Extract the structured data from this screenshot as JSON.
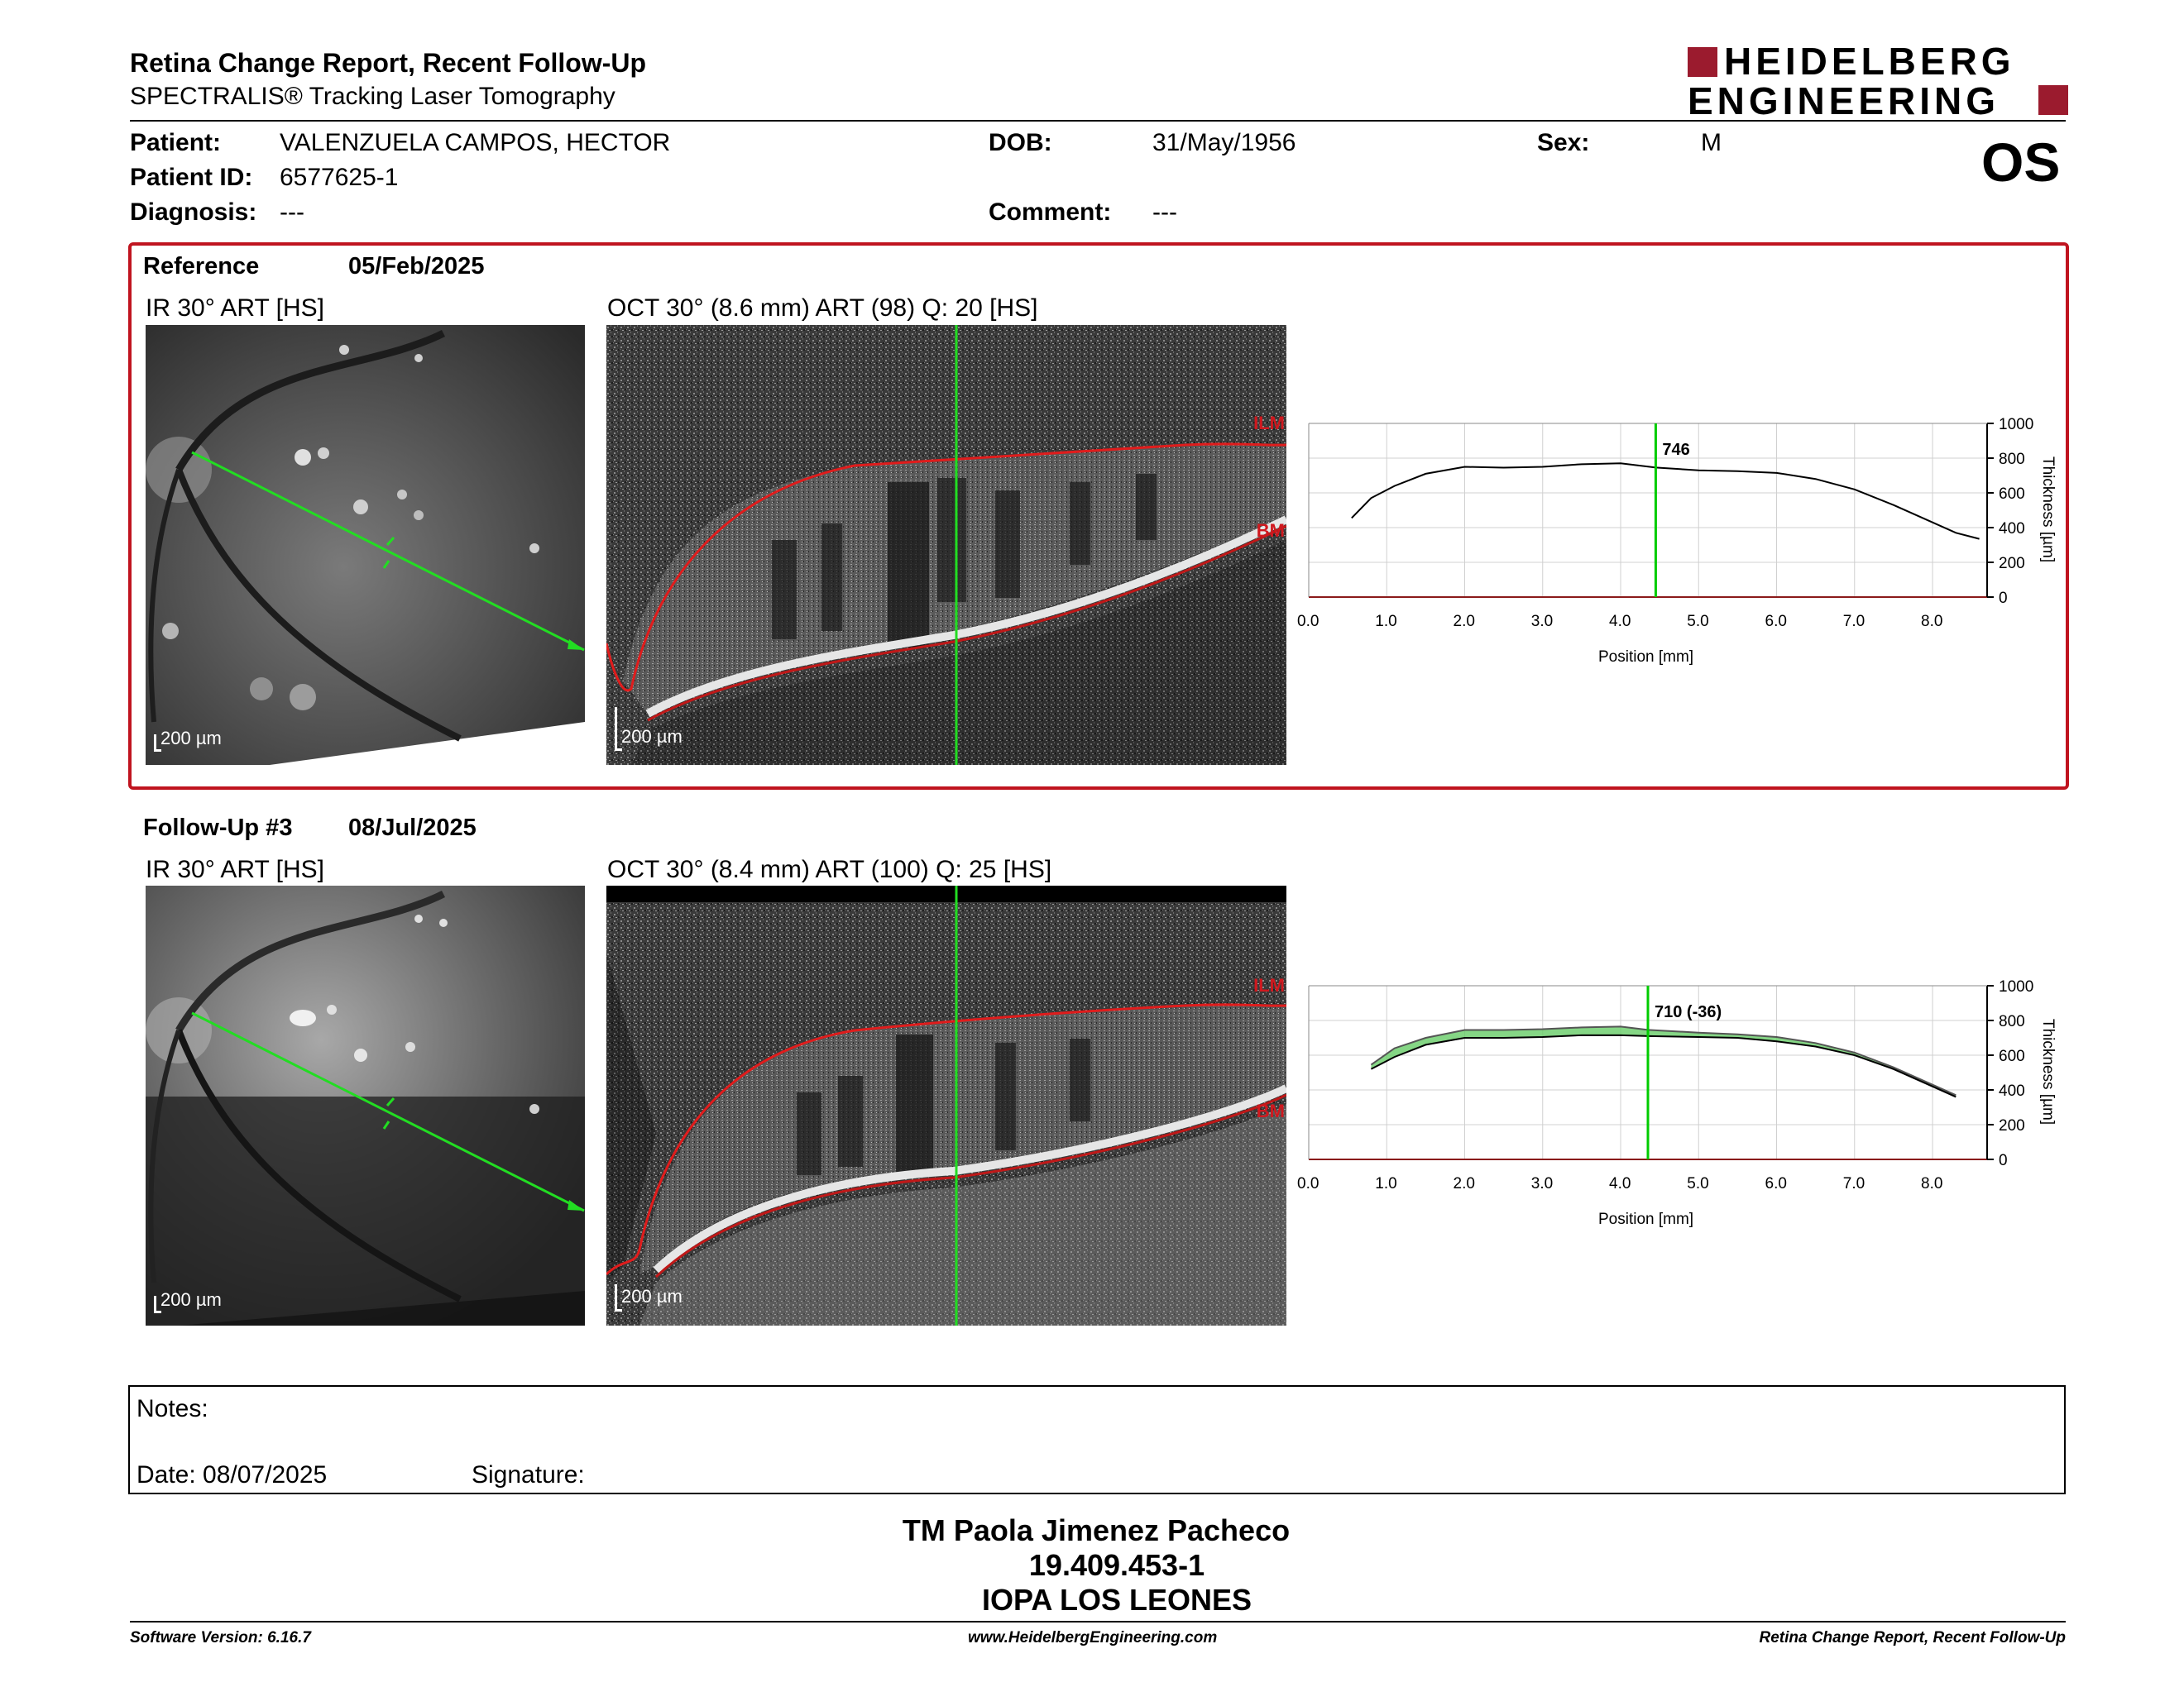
{
  "header": {
    "title": "Retina Change Report, Recent Follow-Up",
    "subtitle": "SPECTRALIS® Tracking Laser Tomography",
    "logo_line1": "HEIDELBERG",
    "logo_line2": "ENGINEERING",
    "eye": "OS"
  },
  "patient": {
    "name_label": "Patient:",
    "name": "VALENZUELA CAMPOS, HECTOR",
    "id_label": "Patient ID:",
    "id": "6577625-1",
    "diagnosis_label": "Diagnosis:",
    "diagnosis": "---",
    "dob_label": "DOB:",
    "dob": "31/May/1956",
    "comment_label": "Comment:",
    "comment": "---",
    "sex_label": "Sex:",
    "sex": "M"
  },
  "reference": {
    "label": "Reference",
    "date": "05/Feb/2025",
    "ir_caption": "IR 30° ART [HS]",
    "oct_caption": "OCT 30° (8.6 mm) ART (98) Q: 20 [HS]",
    "ir_scale": "200 µm",
    "oct_scale": "200 µm",
    "ilm": "ILM",
    "bm": "BM"
  },
  "followup": {
    "label": "Follow-Up #3",
    "date": "08/Jul/2025",
    "ir_caption": "IR 30° ART [HS]",
    "oct_caption": "OCT 30° (8.4 mm) ART (100) Q: 25 [HS]",
    "ir_scale": "200 µm",
    "oct_scale": "200 µm",
    "ilm": "ILM",
    "bm": "BM"
  },
  "chart_data": [
    {
      "type": "line",
      "xlabel": "Position [mm]",
      "ylabel": "Thickness [µm]",
      "xlim": [
        0,
        8.6
      ],
      "ylim": [
        0,
        1000
      ],
      "xticks": [
        "0.0",
        "1.0",
        "2.0",
        "3.0",
        "4.0",
        "5.0",
        "6.0",
        "7.0",
        "8.0"
      ],
      "yticks": [
        "0",
        "200",
        "400",
        "600",
        "800",
        "1000"
      ],
      "marker_x": 4.45,
      "marker_label": "746",
      "series": [
        {
          "x": [
            0.55,
            0.8,
            1.1,
            1.5,
            2.0,
            2.5,
            3.0,
            3.5,
            4.0,
            4.45,
            5.0,
            5.5,
            6.0,
            6.5,
            7.0,
            7.5,
            8.0,
            8.3,
            8.6
          ],
          "y": [
            455,
            570,
            640,
            710,
            750,
            745,
            750,
            765,
            770,
            746,
            730,
            725,
            715,
            680,
            620,
            530,
            430,
            370,
            335
          ]
        }
      ],
      "colors": {
        "line": "#000000",
        "marker": "#00cc00"
      }
    },
    {
      "type": "line",
      "xlabel": "Position [mm]",
      "ylabel": "Thickness [µm]",
      "xlim": [
        0,
        8.4
      ],
      "ylim": [
        0,
        1000
      ],
      "xticks": [
        "0.0",
        "1.0",
        "2.0",
        "3.0",
        "4.0",
        "5.0",
        "6.0",
        "7.0",
        "8.0"
      ],
      "yticks": [
        "0",
        "200",
        "400",
        "600",
        "800",
        "1000"
      ],
      "marker_x": 4.35,
      "marker_label": "710 (-36)",
      "series": [
        {
          "x": [
            0.8,
            1.1,
            1.5,
            2.0,
            2.5,
            3.0,
            3.5,
            4.0,
            4.35,
            5.0,
            5.5,
            6.0,
            6.5,
            7.0,
            7.5,
            8.0,
            8.3
          ],
          "y": [
            520,
            590,
            660,
            700,
            700,
            705,
            715,
            715,
            710,
            705,
            700,
            680,
            650,
            600,
            520,
            420,
            360
          ]
        },
        {
          "x": [
            0.8,
            1.1,
            1.5,
            2.0,
            2.5,
            3.0,
            3.5,
            4.0,
            4.35,
            5.0,
            5.5,
            6.0,
            6.5,
            7.0,
            7.5,
            8.0,
            8.3
          ],
          "y": [
            545,
            640,
            700,
            745,
            745,
            750,
            760,
            765,
            746,
            730,
            720,
            705,
            670,
            615,
            530,
            430,
            370
          ]
        }
      ],
      "colors": {
        "line": "#000000",
        "fill": "#66cc66",
        "marker": "#00cc00"
      }
    }
  ],
  "notes": {
    "notes_label": "Notes:",
    "date_label": "Date: 08/07/2025",
    "signature_label": "Signature:"
  },
  "signature": {
    "name": "TM Paola Jimenez Pacheco",
    "id": "19.409.453-1",
    "org": "IOPA LOS LEONES"
  },
  "footer": {
    "software": "Software Version: 6.16.7",
    "website": "www.HeidelbergEngineering.com",
    "report": "Retina Change Report, Recent Follow-Up"
  }
}
